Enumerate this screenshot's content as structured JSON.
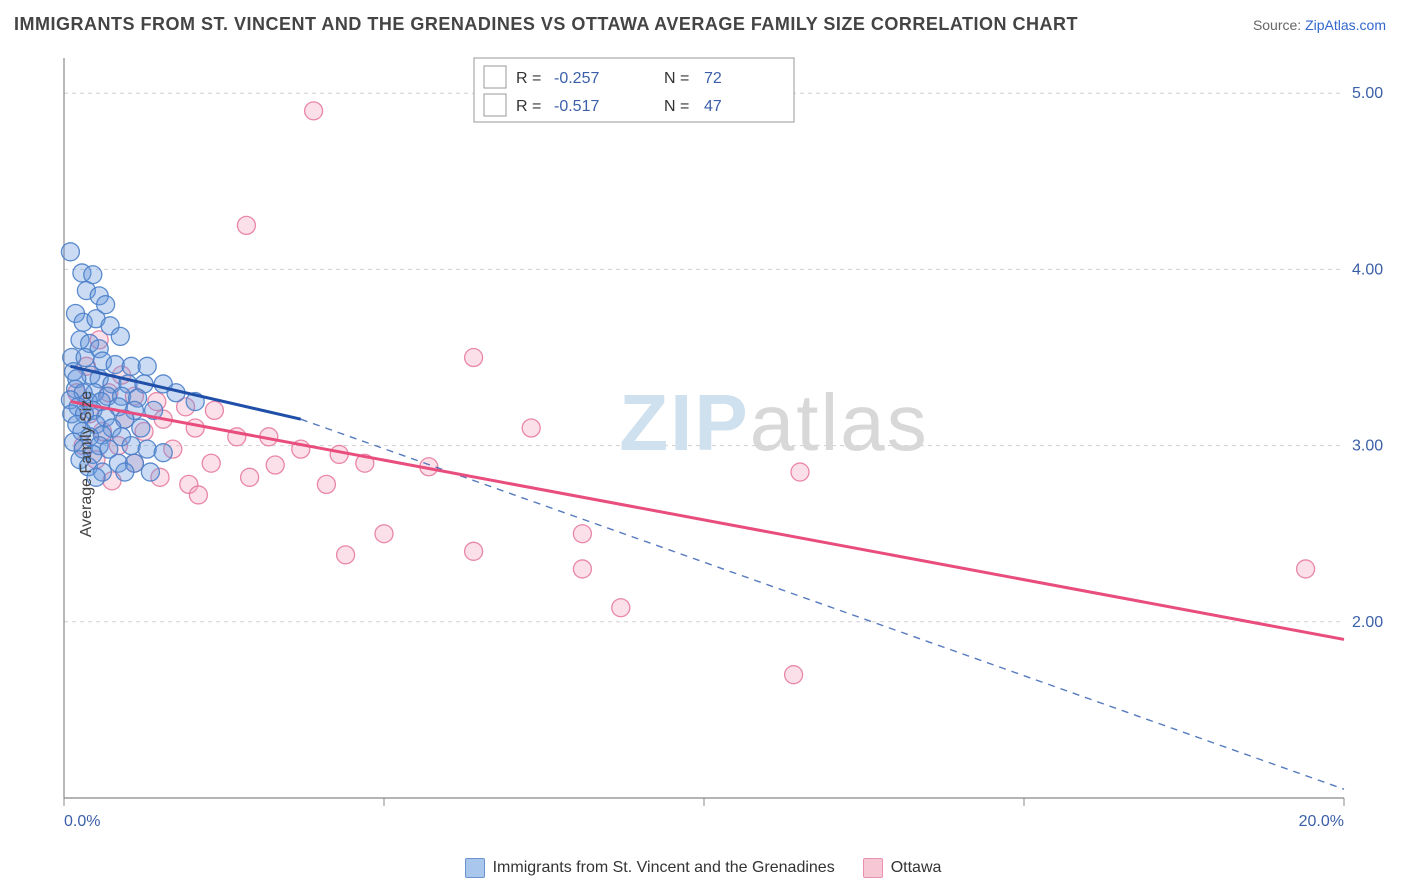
{
  "header": {
    "title": "IMMIGRANTS FROM ST. VINCENT AND THE GRENADINES VS OTTAWA AVERAGE FAMILY SIZE CORRELATION CHART",
    "source_prefix": "Source: ",
    "source_link": "ZipAtlas.com"
  },
  "ylabel": "Average Family Size",
  "watermark": {
    "part1": "ZIP",
    "part2": "atlas"
  },
  "chart": {
    "type": "scatter",
    "xlim": [
      0,
      20
    ],
    "ylim": [
      1.0,
      5.2
    ],
    "x_tick_positions": [
      0,
      5,
      10,
      15,
      20
    ],
    "x_tick_labels": [
      "0.0%",
      "",
      "",
      "",
      "20.0%"
    ],
    "y_tick_positions": [
      2.0,
      3.0,
      4.0,
      5.0
    ],
    "y_tick_labels": [
      "2.00",
      "3.00",
      "4.00",
      "5.00"
    ],
    "background_color": "#ffffff",
    "grid_color": "#d0d0d0",
    "axis_color": "#888888",
    "label_color": "#3a5fa8",
    "marker_radius": 9,
    "marker_fill_opacity": 0.35,
    "marker_stroke_opacity": 0.9,
    "series": [
      {
        "name": "Immigrants from St. Vincent and the Grenadines",
        "color": "#6699dd",
        "stroke": "#4a7fc9",
        "line_color": "#1f4fa8",
        "R": "-0.257",
        "N": "72",
        "trend": {
          "x1": 0.1,
          "y1": 3.45,
          "x2": 3.7,
          "y2": 3.15,
          "dashed_ext": {
            "x2": 20,
            "y2": 1.05
          }
        },
        "points": [
          [
            0.1,
            4.1
          ],
          [
            0.28,
            3.98
          ],
          [
            0.45,
            3.97
          ],
          [
            0.35,
            3.88
          ],
          [
            0.55,
            3.85
          ],
          [
            0.65,
            3.8
          ],
          [
            0.18,
            3.75
          ],
          [
            0.3,
            3.7
          ],
          [
            0.5,
            3.72
          ],
          [
            0.72,
            3.68
          ],
          [
            0.88,
            3.62
          ],
          [
            0.25,
            3.6
          ],
          [
            0.4,
            3.58
          ],
          [
            0.55,
            3.55
          ],
          [
            0.12,
            3.5
          ],
          [
            0.33,
            3.5
          ],
          [
            0.6,
            3.48
          ],
          [
            0.8,
            3.46
          ],
          [
            1.05,
            3.45
          ],
          [
            1.3,
            3.45
          ],
          [
            0.15,
            3.42
          ],
          [
            0.42,
            3.4
          ],
          [
            0.2,
            3.38
          ],
          [
            0.55,
            3.38
          ],
          [
            0.75,
            3.35
          ],
          [
            1.0,
            3.35
          ],
          [
            1.25,
            3.35
          ],
          [
            1.55,
            3.35
          ],
          [
            0.18,
            3.32
          ],
          [
            0.48,
            3.3
          ],
          [
            0.3,
            3.3
          ],
          [
            0.68,
            3.28
          ],
          [
            0.9,
            3.28
          ],
          [
            1.15,
            3.27
          ],
          [
            0.1,
            3.26
          ],
          [
            0.38,
            3.25
          ],
          [
            0.58,
            3.25
          ],
          [
            0.22,
            3.22
          ],
          [
            0.85,
            3.22
          ],
          [
            0.45,
            3.2
          ],
          [
            1.1,
            3.2
          ],
          [
            1.4,
            3.2
          ],
          [
            0.12,
            3.18
          ],
          [
            0.32,
            3.18
          ],
          [
            0.65,
            3.16
          ],
          [
            0.95,
            3.15
          ],
          [
            1.75,
            3.3
          ],
          [
            2.05,
            3.25
          ],
          [
            0.2,
            3.12
          ],
          [
            0.5,
            3.12
          ],
          [
            0.75,
            3.1
          ],
          [
            1.2,
            3.1
          ],
          [
            0.28,
            3.08
          ],
          [
            0.6,
            3.06
          ],
          [
            0.4,
            3.05
          ],
          [
            0.9,
            3.05
          ],
          [
            0.15,
            3.02
          ],
          [
            0.55,
            3.0
          ],
          [
            1.05,
            3.0
          ],
          [
            0.3,
            2.98
          ],
          [
            0.7,
            2.98
          ],
          [
            0.45,
            2.95
          ],
          [
            1.3,
            2.98
          ],
          [
            1.55,
            2.96
          ],
          [
            0.25,
            2.92
          ],
          [
            0.85,
            2.9
          ],
          [
            1.1,
            2.9
          ],
          [
            0.38,
            2.88
          ],
          [
            0.6,
            2.85
          ],
          [
            0.95,
            2.85
          ],
          [
            1.35,
            2.85
          ],
          [
            0.5,
            2.82
          ]
        ]
      },
      {
        "name": "Ottawa",
        "color": "#f4a6bf",
        "stroke": "#e77ba0",
        "line_color": "#e84d7e",
        "R": "-0.517",
        "N": "47",
        "trend": {
          "x1": 0.1,
          "y1": 3.25,
          "x2": 20.0,
          "y2": 1.9
        },
        "points": [
          [
            3.9,
            4.9
          ],
          [
            2.85,
            4.25
          ],
          [
            0.55,
            3.6
          ],
          [
            0.35,
            3.45
          ],
          [
            0.9,
            3.4
          ],
          [
            6.4,
            3.5
          ],
          [
            0.2,
            3.3
          ],
          [
            0.7,
            3.3
          ],
          [
            1.1,
            3.28
          ],
          [
            1.45,
            3.25
          ],
          [
            1.9,
            3.22
          ],
          [
            2.35,
            3.2
          ],
          [
            0.4,
            3.18
          ],
          [
            0.95,
            3.15
          ],
          [
            1.55,
            3.15
          ],
          [
            7.3,
            3.1
          ],
          [
            2.05,
            3.1
          ],
          [
            0.6,
            3.08
          ],
          [
            1.25,
            3.08
          ],
          [
            2.7,
            3.05
          ],
          [
            3.2,
            3.05
          ],
          [
            0.3,
            3.0
          ],
          [
            0.85,
            3.0
          ],
          [
            1.7,
            2.98
          ],
          [
            3.7,
            2.98
          ],
          [
            4.3,
            2.95
          ],
          [
            5.7,
            2.88
          ],
          [
            0.5,
            2.92
          ],
          [
            1.1,
            2.9
          ],
          [
            2.3,
            2.9
          ],
          [
            3.3,
            2.89
          ],
          [
            4.7,
            2.9
          ],
          [
            11.5,
            2.85
          ],
          [
            1.5,
            2.82
          ],
          [
            2.9,
            2.82
          ],
          [
            0.75,
            2.8
          ],
          [
            1.95,
            2.78
          ],
          [
            4.1,
            2.78
          ],
          [
            2.1,
            2.72
          ],
          [
            5.0,
            2.5
          ],
          [
            8.1,
            2.5
          ],
          [
            4.4,
            2.38
          ],
          [
            6.4,
            2.4
          ],
          [
            8.1,
            2.3
          ],
          [
            8.7,
            2.08
          ],
          [
            11.4,
            1.7
          ],
          [
            19.4,
            2.3
          ]
        ]
      }
    ]
  },
  "legend_bottom": {
    "items": [
      {
        "swatch_fill": "#a9c6ec",
        "swatch_stroke": "#6a92cf",
        "label": "Immigrants from St. Vincent and the Grenadines"
      },
      {
        "swatch_fill": "#f7c7d6",
        "swatch_stroke": "#e98fb0",
        "label": "Ottawa"
      }
    ]
  },
  "stats_legend": {
    "r_label": "R =",
    "n_label": "N =",
    "value_color": "#3a5fa8"
  }
}
